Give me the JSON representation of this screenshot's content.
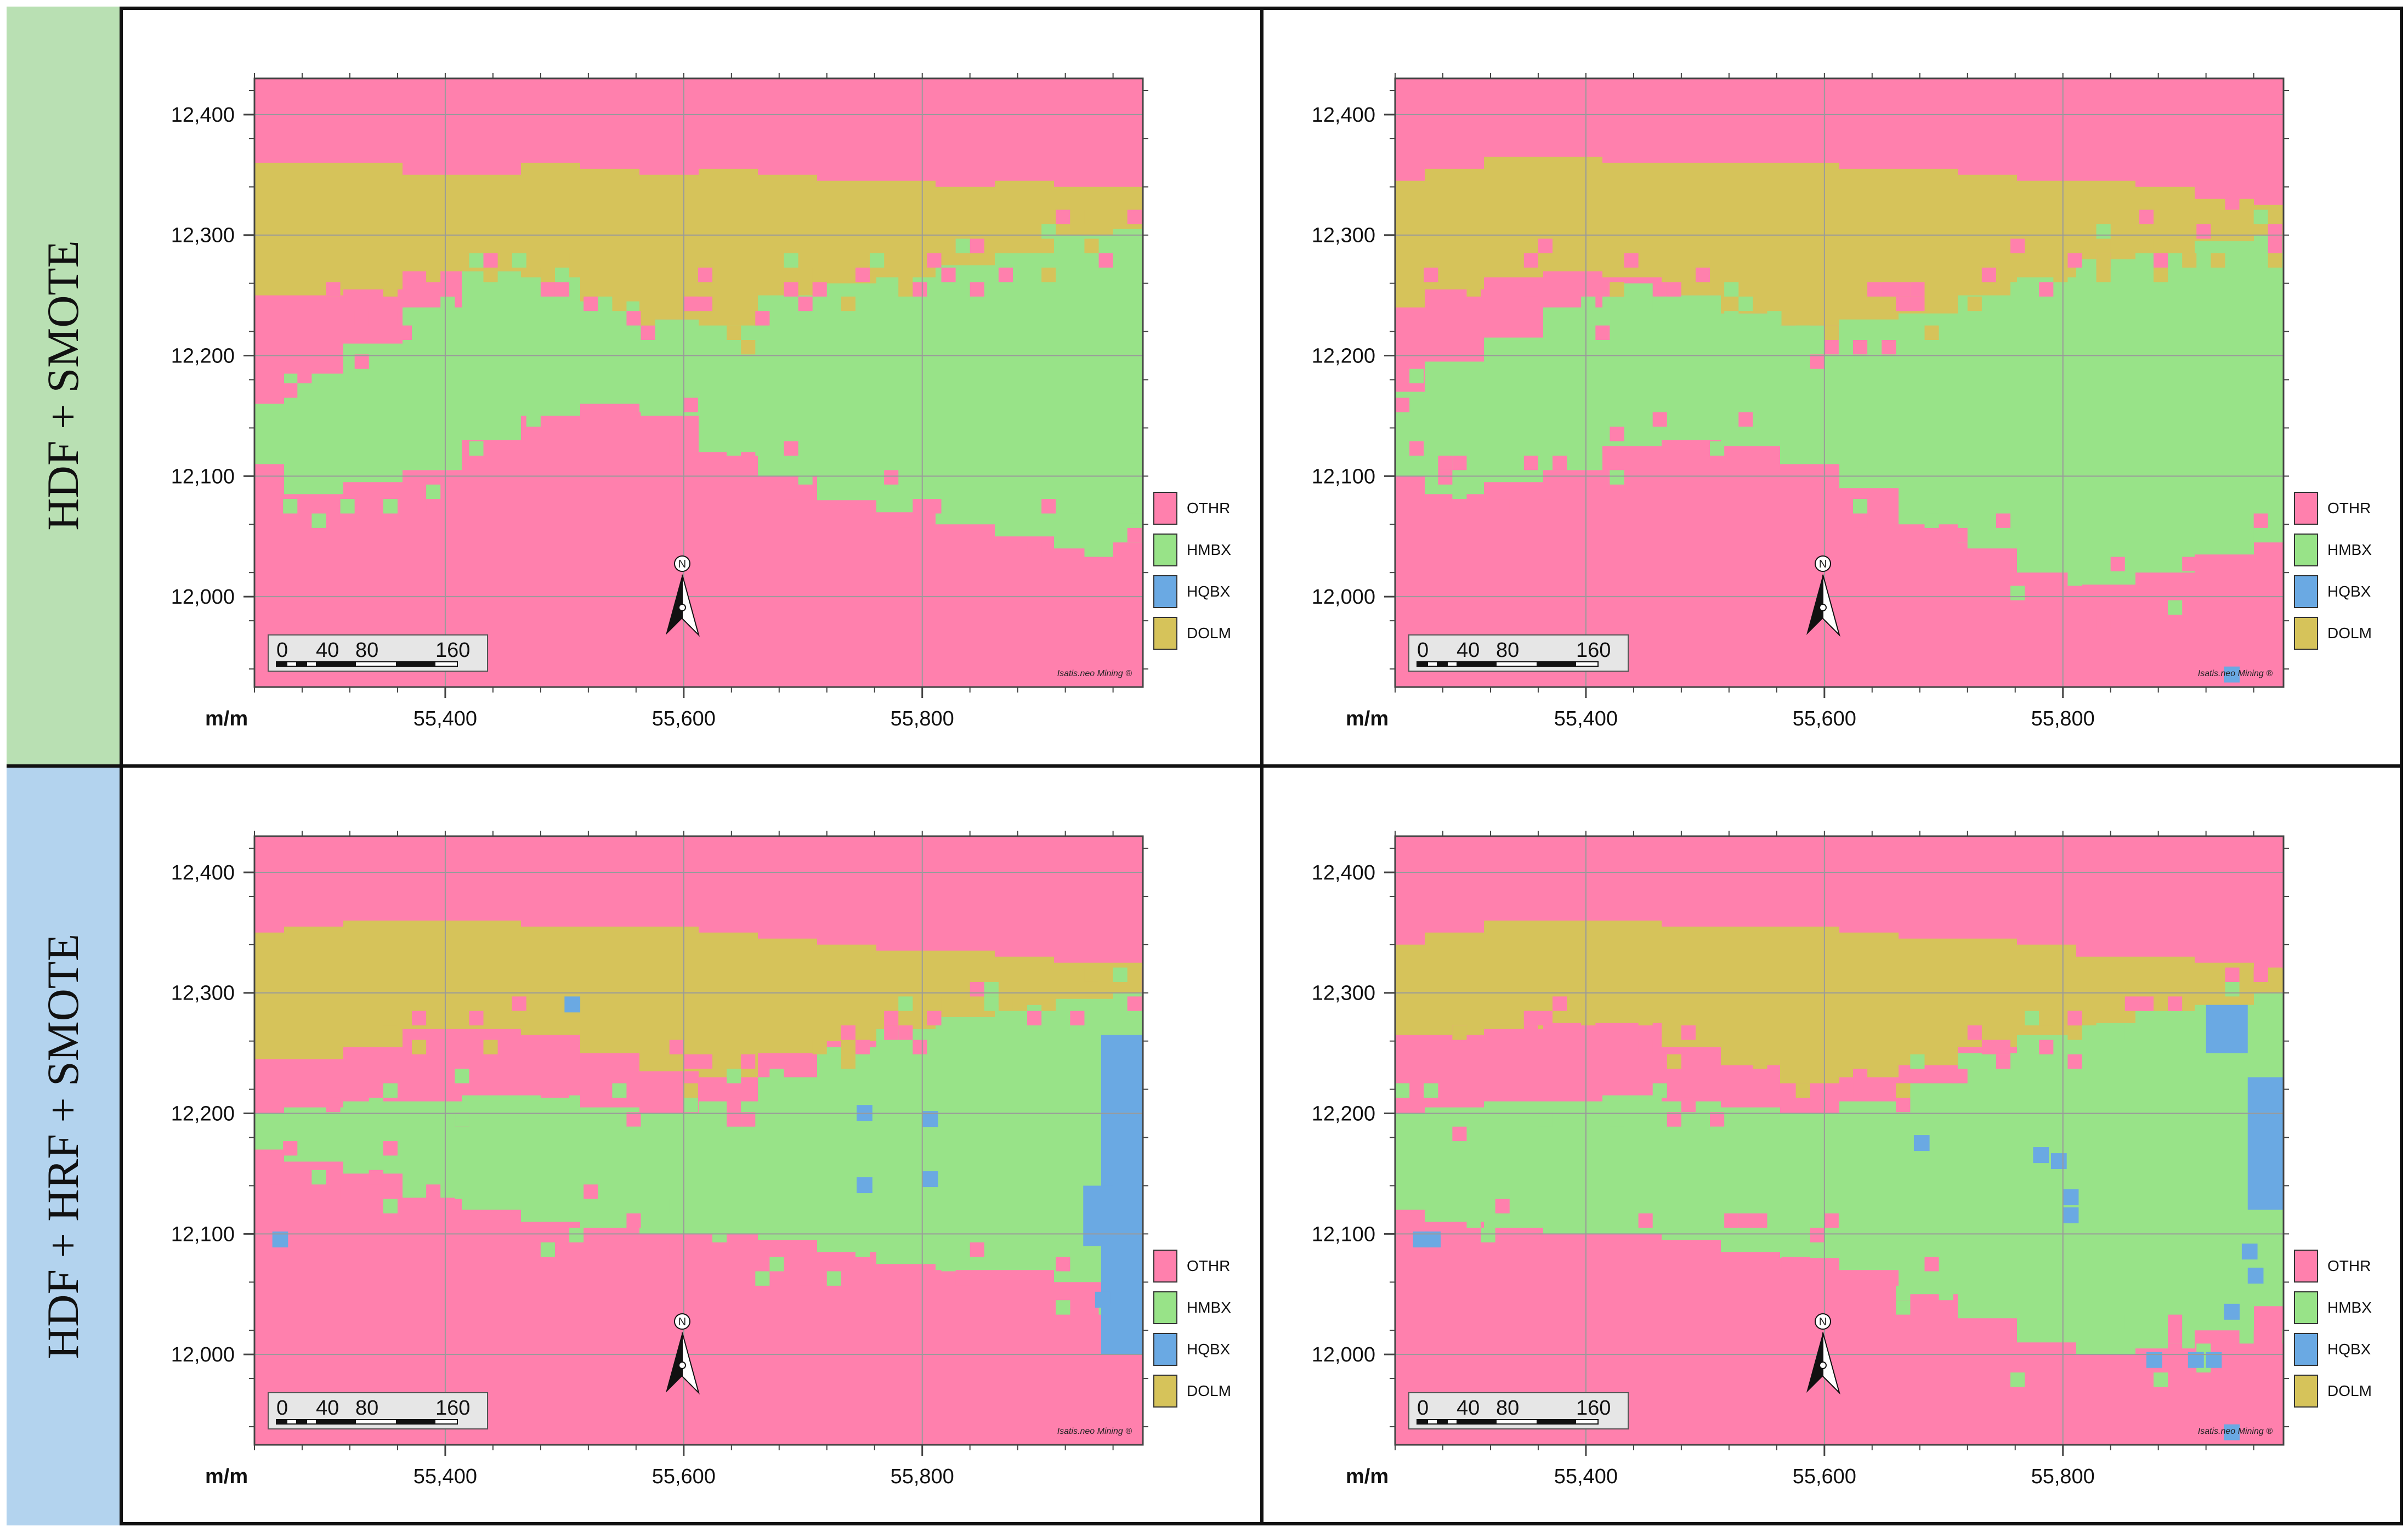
{
  "rows": [
    {
      "label": "HDF + SMOTE",
      "color": "#b9e0b3"
    },
    {
      "label": "HDF + HRF + SMOTE",
      "color": "#b3d3ee"
    }
  ],
  "axes": {
    "unit_label": "m/m",
    "x_ticks": [
      "55,400",
      "55,600",
      "55,800"
    ],
    "y_ticks": [
      "12,400",
      "12,300",
      "12,200",
      "12,100",
      "12,000"
    ],
    "x_tick_values": [
      55400,
      55600,
      55800
    ],
    "y_tick_values": [
      12400,
      12300,
      12200,
      12100,
      12000
    ],
    "xlim": [
      55240,
      55985
    ],
    "ylim": [
      11925,
      12430
    ]
  },
  "legend": [
    {
      "code": "OTHR",
      "color": "#ff80ad"
    },
    {
      "code": "HMBX",
      "color": "#98e388"
    },
    {
      "code": "HQBX",
      "color": "#6aa9e3"
    },
    {
      "code": "DOLM",
      "color": "#d6c35a"
    }
  ],
  "scalebar": {
    "labels": [
      "0",
      "40",
      "80",
      "160"
    ]
  },
  "north_arrow": {
    "label": "N"
  },
  "credit": "Isatis.neo Mining ®",
  "panels": [
    {
      "id": "top-left",
      "dolm_top": [
        12360,
        12360,
        12360,
        12350,
        12350,
        12360,
        12355,
        12350,
        12355,
        12350,
        12345,
        12345,
        12340,
        12345,
        12340,
        12340
      ],
      "dolm_bot": [
        12250,
        12250,
        12255,
        12270,
        12270,
        12265,
        12245,
        12230,
        12225,
        12250,
        12260,
        12265,
        12275,
        12285,
        12300,
        12305
      ],
      "hmbx_top": [
        12160,
        12185,
        12210,
        12240,
        12270,
        12280,
        12260,
        12230,
        12240,
        12255,
        12270,
        12275,
        12280,
        12290,
        12305,
        12315
      ],
      "hmbx_bot": [
        12110,
        12085,
        12095,
        12105,
        12130,
        12150,
        12160,
        12150,
        12120,
        12100,
        12080,
        12070,
        12060,
        12050,
        12040,
        12045
      ],
      "hqbx": [],
      "hqbx_scatter": []
    },
    {
      "id": "top-right",
      "dolm_top": [
        12345,
        12355,
        12365,
        12365,
        12360,
        12360,
        12360,
        12360,
        12355,
        12355,
        12350,
        12345,
        12345,
        12340,
        12330,
        12325
      ],
      "dolm_bot": [
        12240,
        12255,
        12265,
        12270,
        12265,
        12250,
        12235,
        12225,
        12230,
        12235,
        12250,
        12265,
        12280,
        12285,
        12295,
        12300
      ],
      "hmbx_top": [
        12170,
        12195,
        12215,
        12240,
        12260,
        12250,
        12235,
        12225,
        12240,
        12250,
        12260,
        12270,
        12285,
        12300,
        12310,
        12320
      ],
      "hmbx_bot": [
        12100,
        12085,
        12095,
        12105,
        12125,
        12130,
        12125,
        12110,
        12090,
        12060,
        12040,
        12020,
        12010,
        12020,
        12035,
        12045
      ],
      "hqbx": [],
      "hqbx_scatter": [
        [
          55935,
          11930
        ]
      ]
    },
    {
      "id": "bottom-left",
      "dolm_top": [
        12350,
        12355,
        12360,
        12360,
        12360,
        12355,
        12355,
        12355,
        12350,
        12345,
        12340,
        12335,
        12335,
        12330,
        12325,
        12325
      ],
      "dolm_bot": [
        12245,
        12245,
        12255,
        12270,
        12270,
        12265,
        12250,
        12235,
        12230,
        12250,
        12260,
        12270,
        12280,
        12290,
        12295,
        12300
      ],
      "hmbx_top": [
        12200,
        12205,
        12210,
        12210,
        12215,
        12215,
        12205,
        12200,
        12210,
        12230,
        12255,
        12270,
        12280,
        12290,
        12300,
        12305
      ],
      "hmbx_bot": [
        12170,
        12160,
        12150,
        12130,
        12120,
        12110,
        12105,
        12100,
        12100,
        12095,
        12085,
        12075,
        12070,
        12070,
        12060,
        12050
      ],
      "hqbx": [
        [
          55950,
          12000,
          55985,
          12265
        ],
        [
          55935,
          12090,
          55960,
          12140
        ]
      ],
      "hqbx_scatter": [
        [
          55255,
          12090
        ],
        [
          55500,
          12285
        ],
        [
          55745,
          12195
        ],
        [
          55800,
          12190
        ],
        [
          55745,
          12135
        ],
        [
          55800,
          12140
        ],
        [
          55945,
          12040
        ],
        [
          55955,
          12030
        ]
      ]
    },
    {
      "id": "bottom-right",
      "dolm_top": [
        12340,
        12350,
        12360,
        12360,
        12360,
        12355,
        12355,
        12355,
        12350,
        12345,
        12345,
        12340,
        12330,
        12330,
        12325,
        12320
      ],
      "dolm_bot": [
        12265,
        12265,
        12270,
        12275,
        12275,
        12255,
        12240,
        12225,
        12230,
        12240,
        12255,
        12265,
        12275,
        12285,
        12290,
        12300
      ],
      "hmbx_top": [
        12200,
        12205,
        12210,
        12210,
        12215,
        12210,
        12205,
        12200,
        12210,
        12225,
        12250,
        12265,
        12275,
        12285,
        12295,
        12305
      ],
      "hmbx_bot": [
        12120,
        12110,
        12105,
        12100,
        12100,
        12095,
        12085,
        12080,
        12070,
        12050,
        12030,
        12010,
        12000,
        12005,
        12020,
        12040
      ],
      "hqbx": [
        [
          55955,
          12120,
          55985,
          12230
        ],
        [
          55920,
          12250,
          55955,
          12290
        ]
      ],
      "hqbx_scatter": [
        [
          55255,
          12090
        ],
        [
          55265,
          12090
        ],
        [
          55675,
          12170
        ],
        [
          55775,
          12160
        ],
        [
          55790,
          12155
        ],
        [
          55800,
          12125
        ],
        [
          55800,
          12110
        ],
        [
          55950,
          12080
        ],
        [
          55955,
          12060
        ],
        [
          55870,
          11990
        ],
        [
          55905,
          11990
        ],
        [
          55920,
          11990
        ],
        [
          55935,
          12030
        ],
        [
          55935,
          11930
        ]
      ]
    }
  ]
}
